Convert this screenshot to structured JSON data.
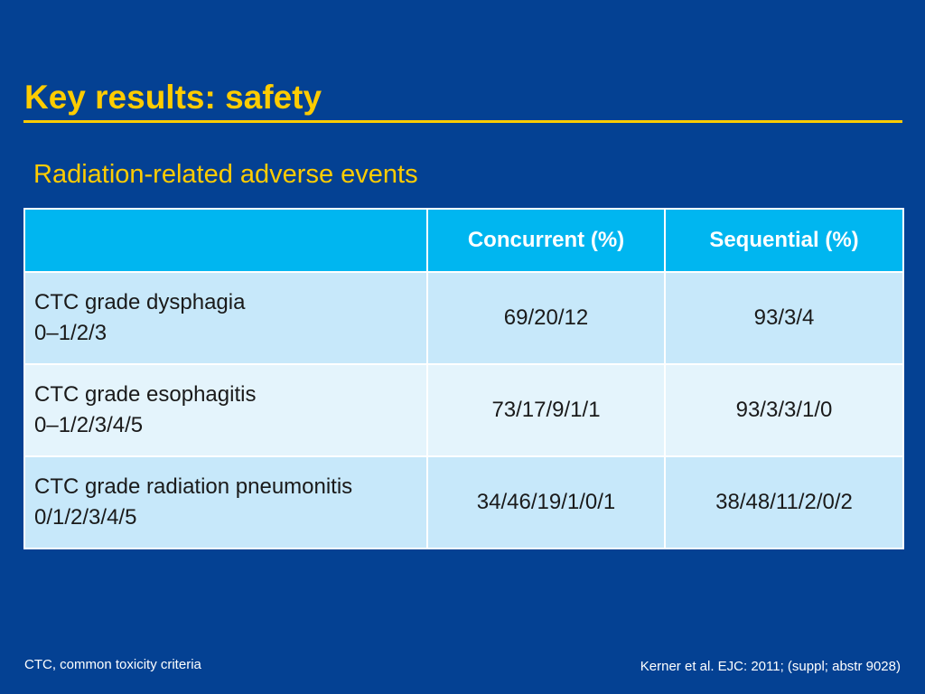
{
  "slide": {
    "title": "Key results: safety",
    "subtitle": "Radiation-related adverse events"
  },
  "table": {
    "headers": [
      "",
      "Concurrent (%)",
      "Sequential (%)"
    ],
    "rows": [
      {
        "label_line1": "CTC grade dysphagia",
        "label_line2": "0–1/2/3",
        "concurrent": "69/20/12",
        "sequential": "93/3/4"
      },
      {
        "label_line1": "CTC grade esophagitis",
        "label_line2": "0–1/2/3/4/5",
        "concurrent": "73/17/9/1/1",
        "sequential": "93/3/3/1/0"
      },
      {
        "label_line1": "CTC grade radiation pneumonitis",
        "label_line2": "0/1/2/3/4/5",
        "concurrent": "34/46/19/1/0/1",
        "sequential": "38/48/11/2/0/2"
      }
    ]
  },
  "footer": {
    "footnote": "CTC, common toxicity criteria",
    "citation": "Kerner et al. EJC: 2011; (suppl; abstr 9028)"
  },
  "colors": {
    "background": "#044193",
    "accent": "#ffcc00",
    "header_cell": "#00b6f0",
    "row_dark": "#c7e8fa",
    "row_light": "#e4f4fc"
  }
}
